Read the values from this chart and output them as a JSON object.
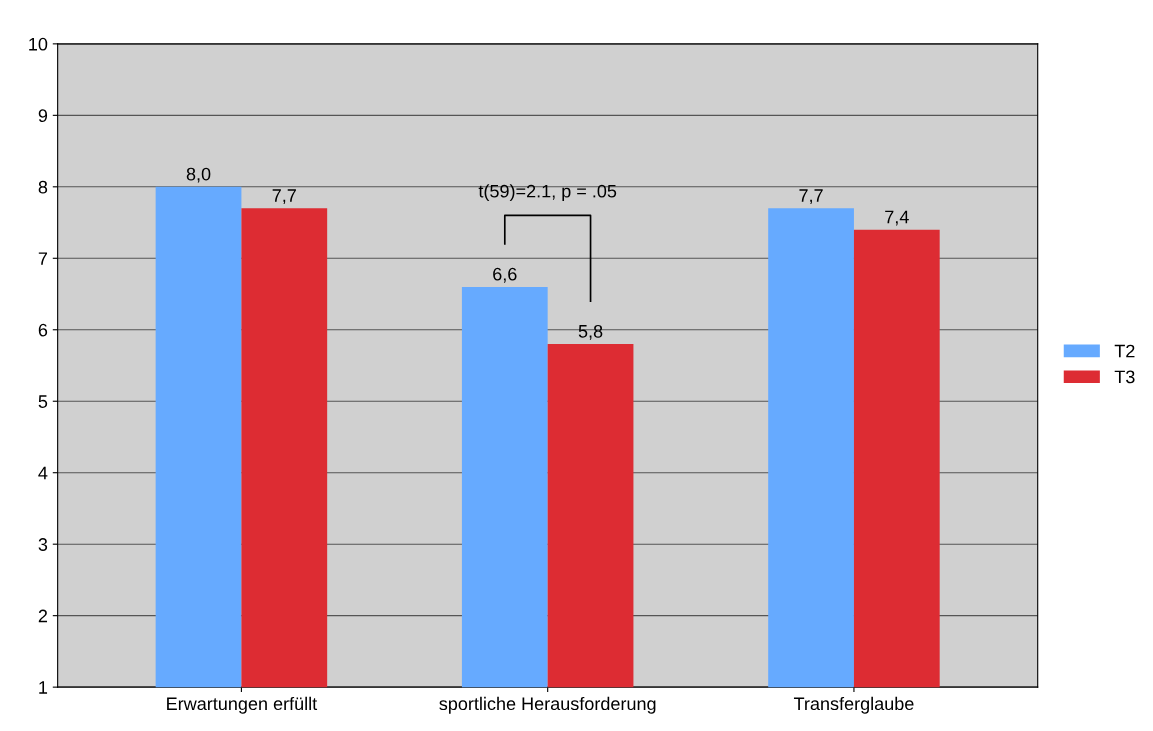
{
  "chart_data": {
    "type": "bar",
    "categories": [
      "Erwartungen erfüllt",
      "sportliche Herausforderung",
      "Transferglaube"
    ],
    "series": [
      {
        "name": "T2",
        "color": "#66aaff",
        "values": [
          8.0,
          6.6,
          7.7
        ],
        "value_labels": [
          "8,0",
          "6,6",
          "7,7"
        ]
      },
      {
        "name": "T3",
        "color": "#dd2c33",
        "values": [
          7.7,
          5.8,
          7.4
        ],
        "value_labels": [
          "7,7",
          "5,8",
          "7,4"
        ]
      }
    ],
    "ylim": [
      1,
      10
    ],
    "yticks": [
      1,
      2,
      3,
      4,
      5,
      6,
      7,
      8,
      9,
      10
    ],
    "grid": "y",
    "legend": "right",
    "annotations": [
      "t(59)=2.1, p = .05"
    ]
  }
}
